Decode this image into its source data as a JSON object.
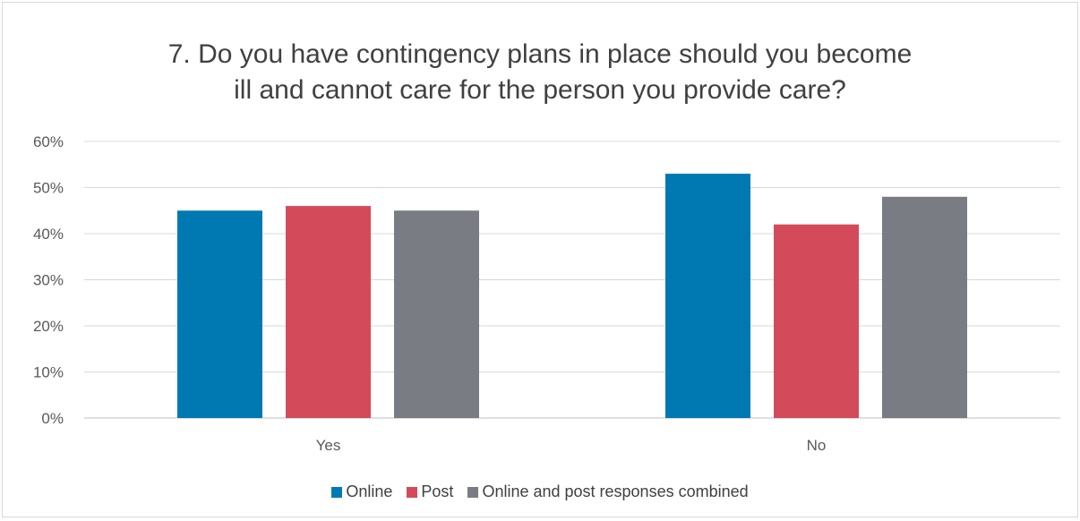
{
  "chart_data": {
    "type": "bar",
    "title_lines": [
      "7. Do you have contingency plans in place should you become",
      "ill and cannot care for the person you provide care?"
    ],
    "categories": [
      "Yes",
      "No"
    ],
    "series": [
      {
        "name": "Online",
        "color": "#0079b3",
        "values": [
          0.45,
          0.53
        ]
      },
      {
        "name": "Post",
        "color": "#d34b5a",
        "values": [
          0.46,
          0.42
        ]
      },
      {
        "name": "Online and post responses combined",
        "color": "#7a7c84",
        "values": [
          0.45,
          0.48
        ]
      }
    ],
    "ylim": [
      0,
      0.6
    ],
    "yticks": [
      {
        "value": 0.0,
        "label": "0%"
      },
      {
        "value": 0.1,
        "label": "10%"
      },
      {
        "value": 0.2,
        "label": "20%"
      },
      {
        "value": 0.3,
        "label": "30%"
      },
      {
        "value": 0.4,
        "label": "40%"
      },
      {
        "value": 0.5,
        "label": "50%"
      },
      {
        "value": 0.6,
        "label": "60%"
      }
    ],
    "grid": true,
    "legend_position": "bottom"
  }
}
